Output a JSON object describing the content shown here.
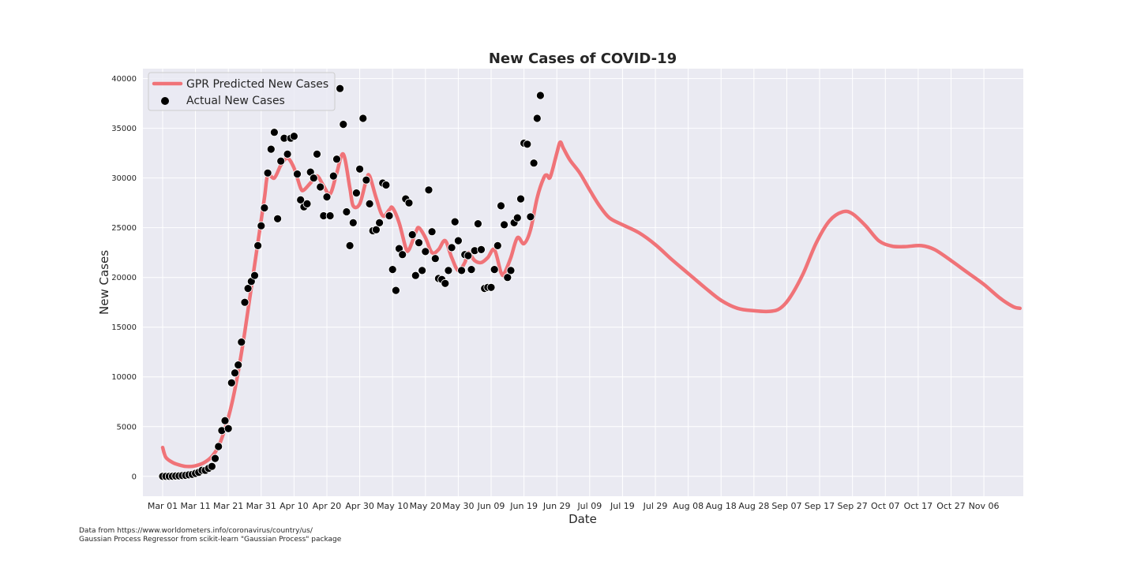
{
  "chart_data": {
    "type": "line",
    "title": "New Cases of COVID-19",
    "xlabel": "Date",
    "ylabel": "New Cases",
    "ylim": [
      -2000,
      41000
    ],
    "yticks": [
      0,
      5000,
      10000,
      15000,
      20000,
      25000,
      30000,
      35000,
      40000
    ],
    "xlim_days_from_start": [
      -6,
      262
    ],
    "xtick_labels": [
      "Mar 01",
      "Mar 11",
      "Mar 21",
      "Mar 31",
      "Apr 10",
      "Apr 20",
      "Apr 30",
      "May 10",
      "May 20",
      "May 30",
      "Jun 09",
      "Jun 19",
      "Jun 29",
      "Jul 09",
      "Jul 19",
      "Jul 29",
      "Aug 08",
      "Aug 18",
      "Aug 28",
      "Sep 07",
      "Sep 17",
      "Sep 27",
      "Oct 07",
      "Oct 17",
      "Oct 27",
      "Nov 06"
    ],
    "grid": true,
    "legend_position": "top-left",
    "series": [
      {
        "name": "GPR Predicted New Cases",
        "kind": "line",
        "color": "#f07378",
        "points": [
          [
            "2020-03-01",
            2900
          ],
          [
            "2020-03-02",
            1900
          ],
          [
            "2020-03-04",
            1400
          ],
          [
            "2020-03-06",
            1150
          ],
          [
            "2020-03-08",
            1000
          ],
          [
            "2020-03-10",
            1000
          ],
          [
            "2020-03-12",
            1150
          ],
          [
            "2020-03-14",
            1450
          ],
          [
            "2020-03-16",
            2000
          ],
          [
            "2020-03-18",
            3000
          ],
          [
            "2020-03-20",
            4800
          ],
          [
            "2020-03-22",
            7200
          ],
          [
            "2020-03-24",
            10500
          ],
          [
            "2020-03-26",
            14500
          ],
          [
            "2020-03-28",
            19000
          ],
          [
            "2020-03-30",
            23500
          ],
          [
            "2020-04-01",
            28000
          ],
          [
            "2020-04-02",
            30300
          ],
          [
            "2020-04-04",
            30000
          ],
          [
            "2020-04-06",
            31300
          ],
          [
            "2020-04-08",
            32000
          ],
          [
            "2020-04-10",
            31000
          ],
          [
            "2020-04-12",
            29000
          ],
          [
            "2020-04-13",
            28800
          ],
          [
            "2020-04-15",
            29500
          ],
          [
            "2020-04-17",
            30200
          ],
          [
            "2020-04-19",
            29200
          ],
          [
            "2020-04-21",
            28400
          ],
          [
            "2020-04-23",
            30500
          ],
          [
            "2020-04-25",
            32400
          ],
          [
            "2020-04-27",
            29000
          ],
          [
            "2020-04-28",
            27200
          ],
          [
            "2020-04-30",
            27400
          ],
          [
            "2020-05-02",
            29800
          ],
          [
            "2020-05-03",
            30200
          ],
          [
            "2020-05-05",
            28000
          ],
          [
            "2020-05-07",
            26200
          ],
          [
            "2020-05-09",
            26800
          ],
          [
            "2020-05-10",
            27000
          ],
          [
            "2020-05-12",
            25500
          ],
          [
            "2020-05-14",
            23000
          ],
          [
            "2020-05-15",
            22800
          ],
          [
            "2020-05-17",
            24500
          ],
          [
            "2020-05-18",
            25000
          ],
          [
            "2020-05-20",
            24000
          ],
          [
            "2020-05-22",
            22500
          ],
          [
            "2020-05-24",
            22800
          ],
          [
            "2020-05-26",
            23700
          ],
          [
            "2020-05-28",
            22000
          ],
          [
            "2020-05-30",
            20700
          ],
          [
            "2020-06-01",
            21500
          ],
          [
            "2020-06-02",
            22500
          ],
          [
            "2020-06-04",
            21700
          ],
          [
            "2020-06-06",
            21500
          ],
          [
            "2020-06-08",
            22000
          ],
          [
            "2020-06-10",
            22800
          ],
          [
            "2020-06-12",
            20500
          ],
          [
            "2020-06-13",
            20400
          ],
          [
            "2020-06-15",
            22000
          ],
          [
            "2020-06-17",
            24000
          ],
          [
            "2020-06-19",
            23400
          ],
          [
            "2020-06-21",
            24800
          ],
          [
            "2020-06-23",
            28000
          ],
          [
            "2020-06-25",
            30000
          ],
          [
            "2020-06-26",
            30300
          ],
          [
            "2020-06-27",
            30100
          ],
          [
            "2020-06-29",
            32500
          ],
          [
            "2020-06-30",
            33600
          ],
          [
            "2020-07-01",
            33000
          ],
          [
            "2020-07-03",
            31800
          ],
          [
            "2020-07-06",
            30500
          ],
          [
            "2020-07-09",
            28800
          ],
          [
            "2020-07-12",
            27200
          ],
          [
            "2020-07-15",
            26000
          ],
          [
            "2020-07-19",
            25300
          ],
          [
            "2020-07-24",
            24500
          ],
          [
            "2020-07-29",
            23300
          ],
          [
            "2020-08-03",
            21800
          ],
          [
            "2020-08-08",
            20400
          ],
          [
            "2020-08-13",
            19000
          ],
          [
            "2020-08-18",
            17700
          ],
          [
            "2020-08-23",
            16900
          ],
          [
            "2020-08-28",
            16650
          ],
          [
            "2020-09-02",
            16600
          ],
          [
            "2020-09-05",
            16900
          ],
          [
            "2020-09-08",
            18000
          ],
          [
            "2020-09-12",
            20400
          ],
          [
            "2020-09-16",
            23500
          ],
          [
            "2020-09-20",
            25700
          ],
          [
            "2020-09-24",
            26600
          ],
          [
            "2020-09-27",
            26400
          ],
          [
            "2020-10-01",
            25200
          ],
          [
            "2020-10-05",
            23700
          ],
          [
            "2020-10-09",
            23150
          ],
          [
            "2020-10-13",
            23100
          ],
          [
            "2020-10-18",
            23200
          ],
          [
            "2020-10-22",
            22800
          ],
          [
            "2020-10-27",
            21700
          ],
          [
            "2020-11-01",
            20500
          ],
          [
            "2020-11-06",
            19300
          ],
          [
            "2020-11-11",
            17900
          ],
          [
            "2020-11-15",
            17050
          ],
          [
            "2020-11-17",
            16900
          ]
        ]
      },
      {
        "name": "Actual New Cases",
        "kind": "scatter",
        "color": "#000000",
        "points": [
          [
            "2020-03-01",
            0
          ],
          [
            "2020-03-02",
            0
          ],
          [
            "2020-03-03",
            0
          ],
          [
            "2020-03-04",
            10
          ],
          [
            "2020-03-05",
            30
          ],
          [
            "2020-03-06",
            50
          ],
          [
            "2020-03-07",
            80
          ],
          [
            "2020-03-08",
            100
          ],
          [
            "2020-03-09",
            150
          ],
          [
            "2020-03-10",
            200
          ],
          [
            "2020-03-11",
            300
          ],
          [
            "2020-03-12",
            400
          ],
          [
            "2020-03-13",
            600
          ],
          [
            "2020-03-14",
            600
          ],
          [
            "2020-03-15",
            800
          ],
          [
            "2020-03-16",
            1000
          ],
          [
            "2020-03-17",
            1800
          ],
          [
            "2020-03-18",
            3000
          ],
          [
            "2020-03-19",
            4600
          ],
          [
            "2020-03-20",
            5600
          ],
          [
            "2020-03-21",
            4800
          ],
          [
            "2020-03-22",
            9400
          ],
          [
            "2020-03-23",
            10400
          ],
          [
            "2020-03-24",
            11200
          ],
          [
            "2020-03-25",
            13500
          ],
          [
            "2020-03-26",
            17500
          ],
          [
            "2020-03-27",
            18900
          ],
          [
            "2020-03-28",
            19600
          ],
          [
            "2020-03-29",
            20200
          ],
          [
            "2020-03-30",
            23200
          ],
          [
            "2020-03-31",
            25200
          ],
          [
            "2020-04-01",
            27000
          ],
          [
            "2020-04-02",
            30500
          ],
          [
            "2020-04-03",
            32900
          ],
          [
            "2020-04-04",
            34600
          ],
          [
            "2020-04-05",
            25900
          ],
          [
            "2020-04-06",
            31700
          ],
          [
            "2020-04-07",
            34000
          ],
          [
            "2020-04-08",
            32400
          ],
          [
            "2020-04-09",
            34000
          ],
          [
            "2020-04-10",
            34200
          ],
          [
            "2020-04-11",
            30400
          ],
          [
            "2020-04-12",
            27800
          ],
          [
            "2020-04-13",
            27100
          ],
          [
            "2020-04-14",
            27400
          ],
          [
            "2020-04-15",
            30600
          ],
          [
            "2020-04-16",
            30000
          ],
          [
            "2020-04-17",
            32400
          ],
          [
            "2020-04-18",
            29100
          ],
          [
            "2020-04-19",
            26200
          ],
          [
            "2020-04-20",
            28100
          ],
          [
            "2020-04-21",
            26200
          ],
          [
            "2020-04-22",
            30200
          ],
          [
            "2020-04-23",
            31900
          ],
          [
            "2020-04-24",
            39000
          ],
          [
            "2020-04-25",
            35400
          ],
          [
            "2020-04-26",
            26600
          ],
          [
            "2020-04-27",
            23200
          ],
          [
            "2020-04-28",
            25500
          ],
          [
            "2020-04-29",
            28500
          ],
          [
            "2020-04-30",
            30900
          ],
          [
            "2020-05-01",
            36000
          ],
          [
            "2020-05-02",
            29800
          ],
          [
            "2020-05-03",
            27400
          ],
          [
            "2020-05-04",
            24700
          ],
          [
            "2020-05-05",
            24800
          ],
          [
            "2020-05-06",
            25500
          ],
          [
            "2020-05-07",
            29500
          ],
          [
            "2020-05-08",
            29300
          ],
          [
            "2020-05-09",
            26200
          ],
          [
            "2020-05-10",
            20800
          ],
          [
            "2020-05-11",
            18700
          ],
          [
            "2020-05-12",
            22900
          ],
          [
            "2020-05-13",
            22300
          ],
          [
            "2020-05-14",
            27900
          ],
          [
            "2020-05-15",
            27500
          ],
          [
            "2020-05-16",
            24300
          ],
          [
            "2020-05-17",
            20200
          ],
          [
            "2020-05-18",
            23500
          ],
          [
            "2020-05-19",
            20700
          ],
          [
            "2020-05-20",
            22600
          ],
          [
            "2020-05-21",
            28800
          ],
          [
            "2020-05-22",
            24600
          ],
          [
            "2020-05-23",
            21900
          ],
          [
            "2020-05-24",
            19900
          ],
          [
            "2020-05-25",
            19800
          ],
          [
            "2020-05-26",
            19400
          ],
          [
            "2020-05-27",
            20700
          ],
          [
            "2020-05-28",
            23000
          ],
          [
            "2020-05-29",
            25600
          ],
          [
            "2020-05-30",
            23700
          ],
          [
            "2020-05-31",
            20700
          ],
          [
            "2020-06-01",
            22300
          ],
          [
            "2020-06-02",
            22200
          ],
          [
            "2020-06-03",
            20800
          ],
          [
            "2020-06-04",
            22700
          ],
          [
            "2020-06-05",
            25400
          ],
          [
            "2020-06-06",
            22800
          ],
          [
            "2020-06-07",
            18900
          ],
          [
            "2020-06-08",
            19000
          ],
          [
            "2020-06-09",
            19000
          ],
          [
            "2020-06-10",
            20800
          ],
          [
            "2020-06-11",
            23200
          ],
          [
            "2020-06-12",
            27200
          ],
          [
            "2020-06-13",
            25300
          ],
          [
            "2020-06-14",
            20000
          ],
          [
            "2020-06-15",
            20700
          ],
          [
            "2020-06-16",
            25500
          ],
          [
            "2020-06-17",
            26000
          ],
          [
            "2020-06-18",
            27900
          ],
          [
            "2020-06-19",
            33500
          ],
          [
            "2020-06-20",
            33400
          ],
          [
            "2020-06-21",
            26100
          ],
          [
            "2020-06-22",
            31500
          ],
          [
            "2020-06-23",
            36000
          ],
          [
            "2020-06-24",
            38300
          ]
        ]
      }
    ]
  },
  "footnote": {
    "line1": "Data from https://www.worldometers.info/coronavirus/country/us/",
    "line2": "Gaussian Process Regressor from scikit-learn \"Gaussian Process\" package"
  }
}
